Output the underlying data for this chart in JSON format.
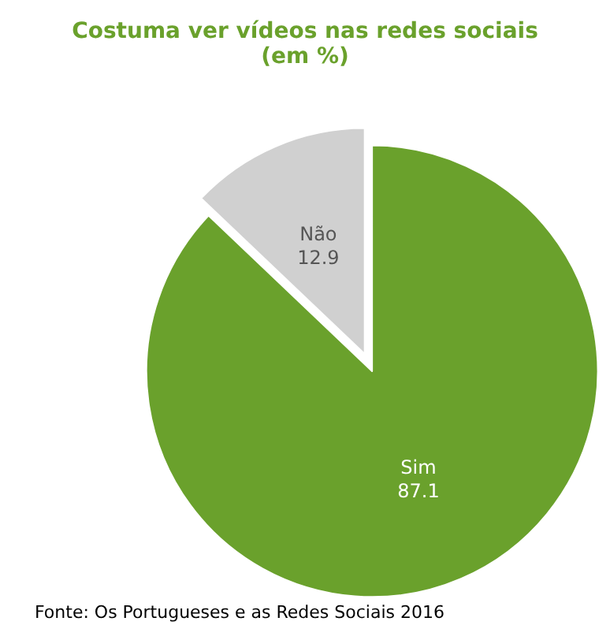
{
  "chart_data": {
    "type": "pie",
    "title": "Costuma ver vídeos nas redes sociais",
    "subtitle": "(em %)",
    "categories": [
      "Sim",
      "Não"
    ],
    "values": [
      87.1,
      12.9
    ],
    "colors": [
      "#6aa12c",
      "#d0d0d0"
    ],
    "data_labels": true,
    "legend": false,
    "annotations": [
      "Fonte: Os Portugueses e as Redes Sociais 2016"
    ]
  }
}
